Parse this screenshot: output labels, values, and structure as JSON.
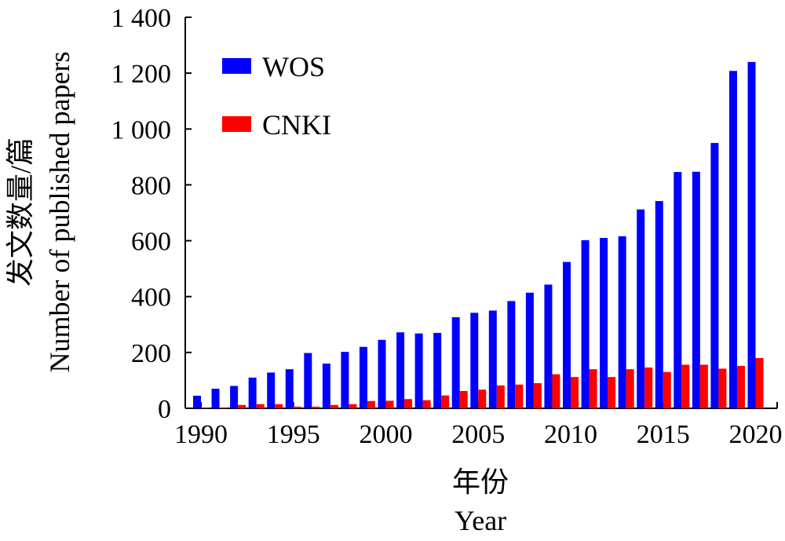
{
  "chart_data": {
    "type": "bar",
    "categories": [
      "1990",
      "1991",
      "1992",
      "1993",
      "1994",
      "1995",
      "1996",
      "1997",
      "1998",
      "1999",
      "2000",
      "2001",
      "2002",
      "2003",
      "2004",
      "2005",
      "2006",
      "2007",
      "2008",
      "2009",
      "2010",
      "2011",
      "2012",
      "2013",
      "2014",
      "2015",
      "2016",
      "2017",
      "2018",
      "2019",
      "2020"
    ],
    "x_tick_labels": [
      "1990",
      "1995",
      "2000",
      "2005",
      "2010",
      "2015",
      "2020"
    ],
    "y_tick_labels": [
      "0",
      "200",
      "400",
      "600",
      "800",
      "1 000",
      "1 200",
      "1 400"
    ],
    "y_ticks": [
      0,
      200,
      400,
      600,
      800,
      1000,
      1200,
      1400
    ],
    "ylim": [
      0,
      1400
    ],
    "xlabel_cn": "年份",
    "xlabel_en": "Year",
    "ylabel_cn": "发文数量/篇",
    "ylabel_en": "Number of published papers",
    "legend_position": "top-left",
    "grid": false,
    "series": [
      {
        "name": "WOS",
        "color": "#0000ff",
        "values": [
          45,
          70,
          80,
          110,
          128,
          140,
          198,
          160,
          202,
          220,
          245,
          272,
          268,
          270,
          326,
          342,
          350,
          384,
          414,
          443,
          524,
          602,
          610,
          616,
          712,
          742,
          846,
          847,
          950,
          1208,
          1240
        ]
      },
      {
        "name": "CNKI",
        "color": "#ff0000",
        "values": [
          2,
          3,
          12,
          15,
          15,
          6,
          6,
          12,
          15,
          26,
          27,
          33,
          29,
          46,
          62,
          67,
          82,
          85,
          90,
          122,
          112,
          140,
          112,
          140,
          146,
          130,
          156,
          156,
          142,
          152,
          180
        ]
      }
    ]
  }
}
